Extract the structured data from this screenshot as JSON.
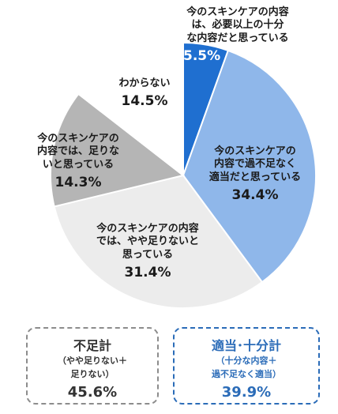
{
  "chart_data": {
    "type": "pie",
    "title": "",
    "slices": [
      {
        "label": "今のスキンケアの内容は、必要以上の十分な内容だと思っている",
        "value": 5.5,
        "value_label": "5.5%",
        "color": "#1f6fd0"
      },
      {
        "label": "今のスキンケアの内容で過不足なく適当だと思っている",
        "value": 34.4,
        "value_label": "34.4%",
        "color": "#8fb7ea"
      },
      {
        "label": "今のスキンケアの内容では、やや足りないと思っている",
        "value": 31.4,
        "value_label": "31.4%",
        "color": "#ececec"
      },
      {
        "label": "今のスキンケアの内容では、足りないと思っている",
        "value": 14.3,
        "value_label": "14.3%",
        "color": "#b5b5b5"
      },
      {
        "label": "わからない",
        "value": 14.5,
        "value_label": "14.5%",
        "color": "#ffffff"
      }
    ],
    "start_angle": "12 o'clock",
    "direction": "clockwise"
  },
  "labels": {
    "s1_l1": "今のスキンケアの内容",
    "s1_l2": "は、必要以上の十分",
    "s1_l3": "な内容だと思っている",
    "s2_l1": "今のスキンケアの",
    "s2_l2": "内容で過不足なく",
    "s2_l3": "適当だと思っている",
    "s3_l1": "今のスキンケアの内容",
    "s3_l2": "では、やや足りないと",
    "s3_l3": "思っている",
    "s4_l1": "今のスキンケアの",
    "s4_l2": "内容では、足りな",
    "s4_l3": "いと思っている",
    "s5_l1": "わからない"
  },
  "summary": {
    "short": {
      "title": "不足計",
      "sub1": "（やや足りない＋",
      "sub2": "足りない）",
      "value": "45.6%",
      "color": "#8c8c8c"
    },
    "ok": {
      "title": "適当･十分計",
      "sub1": "（十分な内容＋",
      "sub2": "過不足なく適当）",
      "value": "39.9%",
      "color": "#2b6cb8"
    }
  }
}
